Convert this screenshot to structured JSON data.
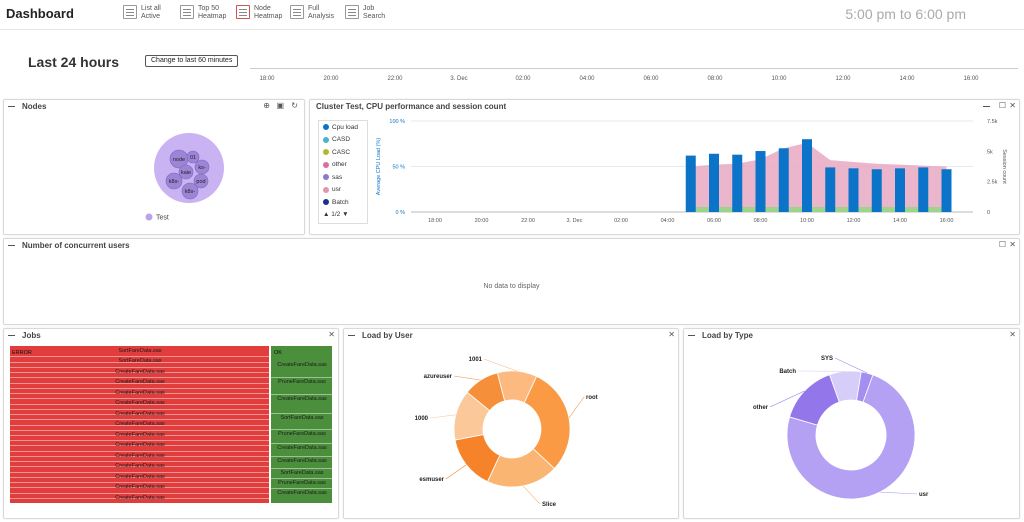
{
  "app": {
    "title": "Dashboard",
    "time_range": "5:00 pm to 6:00 pm"
  },
  "toolbar": [
    {
      "line1": "List all",
      "line2": "Active"
    },
    {
      "line1": "Top 50",
      "line2": "Heatmap"
    },
    {
      "line1": "Node",
      "line2": "Heatmap"
    },
    {
      "line1": "Full",
      "line2": "Analysis"
    },
    {
      "line1": "Job",
      "line2": "Search"
    }
  ],
  "header": {
    "range_title": "Last 24 hours",
    "change_button": "Change to last 60 minutes",
    "timeline_ticks": [
      "18:00",
      "20:00",
      "22:00",
      "3. Dec",
      "02:00",
      "04:00",
      "06:00",
      "08:00",
      "10:00",
      "12:00",
      "14:00",
      "16:00"
    ]
  },
  "nodes": {
    "title": "Nodes",
    "labels": [
      "node",
      "01",
      "ks-",
      "kaie",
      "k8s-",
      "pod",
      "k8s-"
    ],
    "legend": "Test"
  },
  "cluster": {
    "title": "Cluster Test, CPU performance and session count",
    "legend": [
      {
        "name": "Cpu load",
        "color": "#0b74c9"
      },
      {
        "name": "CASD",
        "color": "#4ab3c9"
      },
      {
        "name": "CASC",
        "color": "#b2b82c"
      },
      {
        "name": "other",
        "color": "#d96f9a"
      },
      {
        "name": "sas",
        "color": "#8e79c8"
      },
      {
        "name": "usr",
        "color": "#e397ad"
      },
      {
        "name": "Batch",
        "color": "#1b2f8a"
      }
    ],
    "legend_page": "1/2"
  },
  "chart_data": [
    {
      "type": "bar",
      "title": "Cluster Test, CPU performance and session count",
      "xlabel": "",
      "ylabel": "Average CPU Load (%)",
      "y2label": "Session count",
      "ylim": [
        0,
        100
      ],
      "y2lim": [
        0,
        7500
      ],
      "y_ticks": [
        "0 %",
        "50 %",
        "100 %"
      ],
      "y2_ticks": [
        "0",
        "2.5k",
        "5k",
        "7.5k"
      ],
      "x_ticks": [
        "18:00",
        "20:00",
        "22:00",
        "3. Dec",
        "02:00",
        "04:00",
        "06:00",
        "08:00",
        "10:00",
        "12:00",
        "14:00",
        "16:00"
      ],
      "categories": [
        "05:00",
        "06:00",
        "07:00",
        "08:00",
        "09:00",
        "10:00",
        "11:00",
        "12:00",
        "13:00",
        "14:00",
        "15:00",
        "16:00"
      ],
      "series": [
        {
          "name": "Cpu load",
          "values": [
            62,
            64,
            63,
            67,
            70,
            80,
            49,
            48,
            47,
            48,
            49,
            47
          ]
        },
        {
          "name": "usr",
          "values": [
            50,
            52,
            53,
            58,
            70,
            76,
            57,
            55,
            53,
            52,
            51,
            50
          ]
        }
      ]
    }
  ],
  "concurrent": {
    "title": "Number of concurrent users",
    "empty": "No data to display"
  },
  "jobs": {
    "title": "Jobs",
    "error_label": "ERROR",
    "ok_label": "OK",
    "red_rows": [
      "SortFareData.sas",
      "SortFareData.sas",
      "CreateFareData.sas",
      "CreateFareData.sas",
      "CreateFareData.sas",
      "CreateFareData.sas",
      "CreateFareData.sas",
      "CreateFareData.sas",
      "CreateFareData.sas",
      "CreateFareData.sas",
      "CreateFareData.sas",
      "CreateFareData.sas",
      "CreateFareData.sas",
      "CreateFareData.sas",
      "CreateFareData.sas"
    ],
    "green_rows": [
      "CreateFareData.sas",
      "PruneFareData.sas",
      "CreateFareData.sas",
      "SortFareData.sas",
      "PruneFareData.sas",
      "CreateFareData.sas",
      "CreateFareData.sas",
      "SortFareData.sas",
      "PruneFareData.sas",
      "CreateFareData.sas"
    ]
  },
  "load_user": {
    "title": "Load by User",
    "chart_data": {
      "type": "pie",
      "labels": [
        "root",
        "Slice",
        "esmuser",
        "1000",
        "azureuser",
        "1001"
      ],
      "values": [
        30,
        20,
        15,
        14,
        10,
        11
      ]
    }
  },
  "load_type": {
    "title": "Load by Type",
    "chart_data": {
      "type": "pie",
      "labels": [
        "usr",
        "other",
        "Batch",
        "SYS"
      ],
      "values": [
        74,
        15,
        8,
        3
      ]
    }
  }
}
